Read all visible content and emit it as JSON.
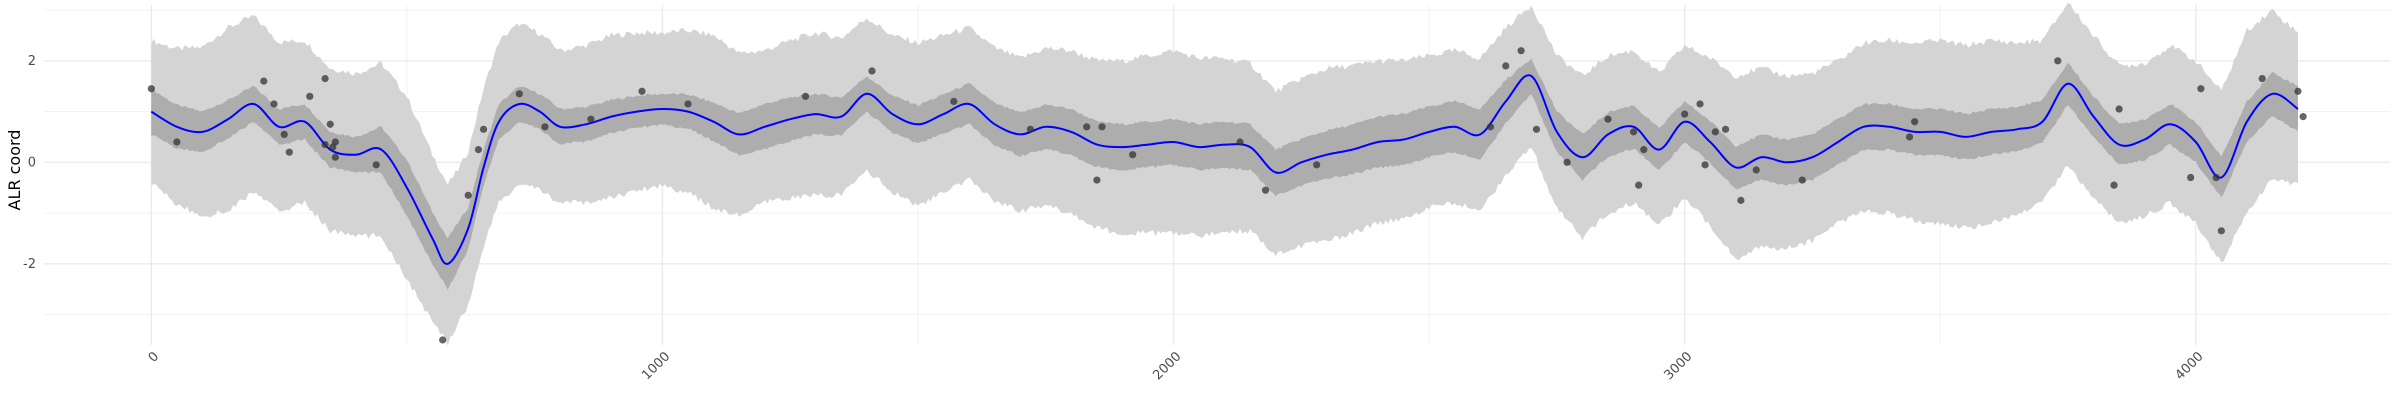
{
  "chart_data": {
    "type": "line",
    "title": "",
    "xlabel": "",
    "ylabel": "ALR coord",
    "xlim": [
      -210,
      4380
    ],
    "ylim": [
      -3.6,
      3.1
    ],
    "x_ticks": [
      0,
      1000,
      2000,
      3000,
      4000
    ],
    "y_ticks": [
      -2,
      0,
      2
    ],
    "grid": true,
    "legend": "none",
    "colors": {
      "mean": "#0000ff",
      "inner_band": "#adadad",
      "outer_band": "#d4d4d4",
      "points": "#333333",
      "grid": "#ebebeb"
    },
    "series": [
      {
        "kind": "mean_line",
        "x": [
          0,
          50,
          100,
          150,
          200,
          250,
          300,
          350,
          400,
          450,
          500,
          550,
          580,
          620,
          650,
          680,
          720,
          760,
          800,
          850,
          900,
          950,
          1000,
          1050,
          1100,
          1150,
          1200,
          1250,
          1300,
          1350,
          1400,
          1450,
          1500,
          1550,
          1600,
          1650,
          1700,
          1750,
          1800,
          1850,
          1900,
          1950,
          2000,
          2050,
          2100,
          2150,
          2200,
          2250,
          2300,
          2350,
          2400,
          2450,
          2500,
          2550,
          2600,
          2650,
          2700,
          2750,
          2800,
          2850,
          2900,
          2950,
          3000,
          3050,
          3100,
          3150,
          3200,
          3250,
          3300,
          3350,
          3400,
          3450,
          3500,
          3550,
          3600,
          3650,
          3700,
          3750,
          3800,
          3850,
          3900,
          3950,
          4000,
          4050,
          4100,
          4150,
          4200
        ],
        "y": [
          1.0,
          0.7,
          0.6,
          0.85,
          1.15,
          0.7,
          0.8,
          0.25,
          0.15,
          0.25,
          -0.5,
          -1.5,
          -2.0,
          -1.3,
          -0.1,
          0.8,
          1.15,
          1.0,
          0.7,
          0.75,
          0.9,
          1.0,
          1.05,
          1.0,
          0.8,
          0.55,
          0.7,
          0.85,
          0.95,
          0.9,
          1.35,
          0.95,
          0.75,
          0.95,
          1.15,
          0.75,
          0.55,
          0.7,
          0.6,
          0.35,
          0.3,
          0.35,
          0.4,
          0.3,
          0.35,
          0.3,
          -0.2,
          0.0,
          0.15,
          0.25,
          0.4,
          0.45,
          0.6,
          0.7,
          0.55,
          1.2,
          1.7,
          0.6,
          0.1,
          0.55,
          0.7,
          0.25,
          0.8,
          0.4,
          -0.1,
          0.1,
          0.0,
          0.1,
          0.4,
          0.7,
          0.7,
          0.6,
          0.6,
          0.5,
          0.6,
          0.65,
          0.8,
          1.55,
          0.9,
          0.35,
          0.45,
          0.75,
          0.4,
          -0.3,
          0.8,
          1.35,
          1.05
        ]
      },
      {
        "kind": "inner_band_half_width",
        "x": [
          0,
          200,
          400,
          500,
          580,
          650,
          800,
          1000,
          1200,
          1400,
          1600,
          1800,
          2000,
          2200,
          2400,
          2600,
          2700,
          2800,
          3000,
          3200,
          3400,
          3600,
          3800,
          4000,
          4100,
          4200
        ],
        "y": [
          0.45,
          0.35,
          0.35,
          0.55,
          0.5,
          0.35,
          0.35,
          0.3,
          0.45,
          0.35,
          0.4,
          0.45,
          0.45,
          0.45,
          0.5,
          0.5,
          0.35,
          0.45,
          0.4,
          0.45,
          0.45,
          0.45,
          0.4,
          0.4,
          0.4,
          0.45
        ]
      },
      {
        "kind": "outer_band_half_width",
        "x": [
          0,
          150,
          300,
          400,
          500,
          600,
          700,
          800,
          900,
          1000,
          1100,
          1200,
          1300,
          1400,
          1500,
          1600,
          1700,
          1800,
          1900,
          2000,
          2100,
          2200,
          2300,
          2400,
          2500,
          2600,
          2700,
          2800,
          2900,
          3000,
          3100,
          3200,
          3300,
          3400,
          3500,
          3600,
          3700,
          3800,
          3900,
          4000,
          4100,
          4200
        ],
        "y": [
          1.4,
          1.8,
          1.6,
          1.6,
          1.8,
          1.5,
          1.6,
          1.5,
          1.6,
          1.5,
          1.7,
          1.5,
          1.6,
          1.5,
          1.6,
          1.5,
          1.5,
          1.6,
          1.7,
          1.8,
          1.7,
          1.6,
          1.7,
          1.6,
          1.5,
          1.5,
          1.4,
          1.6,
          1.5,
          1.5,
          1.8,
          1.7,
          1.6,
          1.7,
          1.8,
          1.8,
          1.6,
          1.6,
          1.5,
          1.6,
          1.8,
          1.5
        ]
      },
      {
        "kind": "observations",
        "x": [
          0,
          50,
          220,
          240,
          260,
          270,
          310,
          340,
          340,
          350,
          355,
          360,
          360,
          440,
          570,
          620,
          640,
          650,
          720,
          770,
          860,
          960,
          1050,
          1280,
          1410,
          1570,
          1720,
          1830,
          1850,
          1860,
          1920,
          2130,
          2180,
          2280,
          2620,
          2650,
          2680,
          2710,
          2770,
          2850,
          2900,
          2910,
          2920,
          3000,
          3030,
          3040,
          3060,
          3080,
          3110,
          3140,
          3230,
          3440,
          3450,
          3730,
          3840,
          3850,
          3990,
          4010,
          4040,
          4050,
          4130,
          4200,
          4210
        ],
        "y": [
          1.45,
          0.4,
          1.6,
          1.15,
          0.55,
          0.2,
          1.3,
          0.35,
          1.65,
          0.75,
          0.3,
          0.1,
          0.4,
          -0.05,
          -3.5,
          -0.65,
          0.25,
          0.65,
          1.35,
          0.7,
          0.85,
          1.4,
          1.15,
          1.3,
          1.8,
          1.2,
          0.65,
          0.7,
          -0.35,
          0.7,
          0.15,
          0.4,
          -0.55,
          -0.05,
          0.7,
          1.9,
          2.2,
          0.65,
          0.0,
          0.85,
          0.6,
          -0.45,
          0.25,
          0.95,
          1.15,
          -0.05,
          0.6,
          0.65,
          -0.75,
          -0.15,
          -0.35,
          0.5,
          0.8,
          2.0,
          -0.45,
          1.05,
          -0.3,
          1.45,
          -0.3,
          -1.35,
          1.65,
          1.4,
          0.9
        ]
      }
    ]
  }
}
